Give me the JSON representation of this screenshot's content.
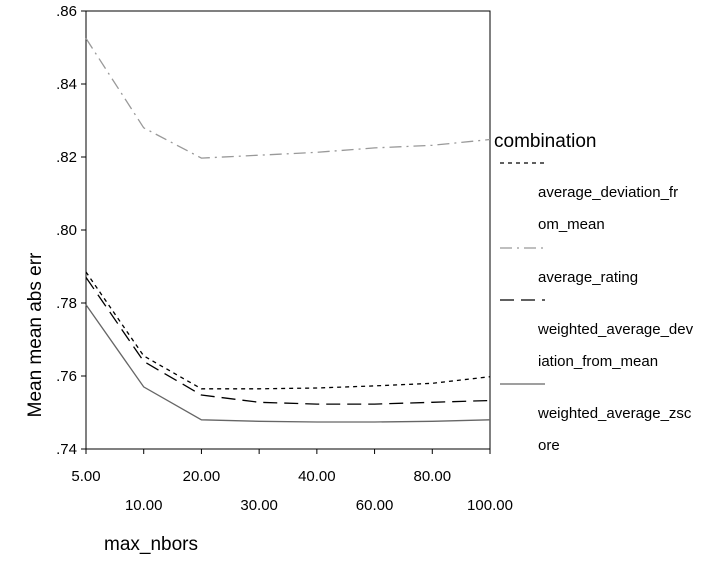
{
  "chart_data": {
    "type": "line",
    "xlabel": "max_nbors",
    "ylabel": "Mean mean abs err",
    "x": [
      "5.00",
      "10.00",
      "20.00",
      "30.00",
      "40.00",
      "60.00",
      "80.00",
      "100.00"
    ],
    "ylim": [
      0.74,
      0.86
    ],
    "y_ticks": [
      ".74",
      ".76",
      ".78",
      ".80",
      ".82",
      ".84",
      ".86"
    ],
    "y_tick_values": [
      0.74,
      0.76,
      0.78,
      0.8,
      0.82,
      0.84,
      0.86
    ],
    "grid": false,
    "legend_title": "combination",
    "legend_position": "right",
    "series": [
      {
        "name": "average_deviation_from_mean",
        "legend_lines": [
          "average_deviation_fr",
          "om_mean"
        ],
        "color": "#000000",
        "dash": "short-dash",
        "values": [
          0.7885,
          0.7655,
          0.7565,
          0.7565,
          0.7567,
          0.7573,
          0.758,
          0.7598
        ]
      },
      {
        "name": "average_rating",
        "legend_lines": [
          "average_rating"
        ],
        "color": "#999999",
        "dash": "dash-dot",
        "values": [
          0.8525,
          0.828,
          0.8197,
          0.8205,
          0.8213,
          0.8225,
          0.8232,
          0.8248
        ]
      },
      {
        "name": "weighted_average_deviation_from_mean",
        "legend_lines": [
          "weighted_average_dev",
          "iation_from_mean"
        ],
        "color": "#000000",
        "dash": "long-dash",
        "values": [
          0.787,
          0.764,
          0.7548,
          0.7528,
          0.7523,
          0.7523,
          0.7528,
          0.7533
        ]
      },
      {
        "name": "weighted_average_zscore",
        "legend_lines": [
          "weighted_average_zsc",
          "ore"
        ],
        "color": "#666666",
        "dash": "solid",
        "values": [
          0.7795,
          0.757,
          0.748,
          0.7476,
          0.7474,
          0.7474,
          0.7476,
          0.748
        ]
      }
    ]
  }
}
